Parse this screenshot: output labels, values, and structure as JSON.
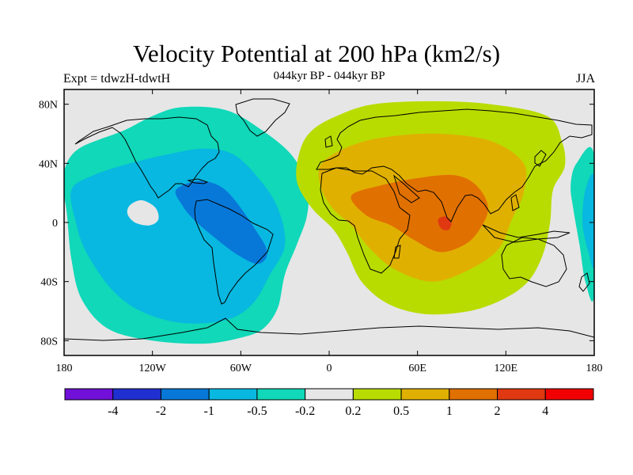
{
  "title": "Velocity Potential at 200 hPa (km2/s)",
  "subtitle": "044kyr BP - 044kyr BP",
  "left_label": "Expt = tdwzH-tdwtH",
  "right_label": "JJA",
  "lat_ticks": [
    {
      "value": 80,
      "label": "80N"
    },
    {
      "value": 40,
      "label": "40N"
    },
    {
      "value": 0,
      "label": "0"
    },
    {
      "value": -40,
      "label": "40S"
    },
    {
      "value": -80,
      "label": "80S"
    }
  ],
  "lon_ticks": [
    {
      "value": -180,
      "label": "180"
    },
    {
      "value": -120,
      "label": "120W"
    },
    {
      "value": -60,
      "label": "60W"
    },
    {
      "value": 0,
      "label": "0"
    },
    {
      "value": 60,
      "label": "60E"
    },
    {
      "value": 120,
      "label": "120E"
    },
    {
      "value": 180,
      "label": "180"
    }
  ],
  "colorbar": {
    "colors": [
      "#7010d8",
      "#2030d0",
      "#0878d8",
      "#08b8e0",
      "#10d8b8",
      "#e6e6e6",
      "#b8dc00",
      "#e0b000",
      "#e07000",
      "#e03810",
      "#f00000"
    ],
    "labels": [
      "-4",
      "-2",
      "-1",
      "-0.5",
      "-0.2",
      "0.2",
      "0.5",
      "1",
      "2",
      "4"
    ]
  },
  "chart_data": {
    "type": "contour-map",
    "projection": "cylindrical-equidistant",
    "variable": "Velocity Potential at 200 hPa",
    "units": "km2/s",
    "season": "JJA",
    "lon_range": [
      -180,
      180
    ],
    "lat_range": [
      -90,
      90
    ],
    "levels": [
      -4,
      -2,
      -1,
      -0.5,
      -0.2,
      0.2,
      0.5,
      1,
      2,
      4
    ],
    "regions": [
      {
        "name": "americas-pacific-negative",
        "level": "-0.2 to -0.5",
        "color": "#10d8b8",
        "polygon": [
          [
            -180,
            35
          ],
          [
            -170,
            50
          ],
          [
            -140,
            62
          ],
          [
            -120,
            72
          ],
          [
            -100,
            78
          ],
          [
            -70,
            76
          ],
          [
            -45,
            62
          ],
          [
            -25,
            45
          ],
          [
            -15,
            25
          ],
          [
            -15,
            5
          ],
          [
            -22,
            -15
          ],
          [
            -30,
            -35
          ],
          [
            -35,
            -58
          ],
          [
            -45,
            -72
          ],
          [
            -60,
            -78
          ],
          [
            -85,
            -82
          ],
          [
            -120,
            -80
          ],
          [
            -150,
            -72
          ],
          [
            -168,
            -52
          ],
          [
            -175,
            -25
          ],
          [
            -178,
            5
          ],
          [
            -180,
            20
          ]
        ]
      },
      {
        "name": "americas-mid-negative",
        "level": "-0.5 to -1",
        "color": "#08b8e0",
        "polygon": [
          [
            -175,
            22
          ],
          [
            -160,
            32
          ],
          [
            -135,
            40
          ],
          [
            -110,
            46
          ],
          [
            -85,
            50
          ],
          [
            -65,
            46
          ],
          [
            -48,
            30
          ],
          [
            -35,
            10
          ],
          [
            -30,
            -15
          ],
          [
            -40,
            -35
          ],
          [
            -52,
            -55
          ],
          [
            -70,
            -66
          ],
          [
            -100,
            -68
          ],
          [
            -128,
            -60
          ],
          [
            -148,
            -45
          ],
          [
            -165,
            -20
          ],
          [
            -172,
            0
          ]
        ]
      },
      {
        "name": "central-america-strong-negative",
        "level": "-1 to -2",
        "color": "#0878d8",
        "polygon": [
          [
            -104,
            22
          ],
          [
            -90,
            28
          ],
          [
            -75,
            25
          ],
          [
            -64,
            15
          ],
          [
            -50,
            -5
          ],
          [
            -42,
            -20
          ],
          [
            -48,
            -28
          ],
          [
            -62,
            -22
          ],
          [
            -78,
            -10
          ],
          [
            -92,
            2
          ],
          [
            -100,
            12
          ]
        ]
      },
      {
        "name": "pacific-weak-patch",
        "level": "-0.2 to 0.2",
        "color": "#e6e6e6",
        "polygon": [
          [
            -135,
            12
          ],
          [
            -127,
            15
          ],
          [
            -118,
            10
          ],
          [
            -116,
            2
          ],
          [
            -122,
            -2
          ],
          [
            -132,
            0
          ],
          [
            -137,
            6
          ]
        ]
      },
      {
        "name": "afro-eurasia-positive",
        "level": "0.2 to 0.5",
        "color": "#b8dc00",
        "polygon": [
          [
            -20,
            48
          ],
          [
            -12,
            62
          ],
          [
            5,
            72
          ],
          [
            30,
            80
          ],
          [
            70,
            82
          ],
          [
            110,
            80
          ],
          [
            148,
            72
          ],
          [
            158,
            55
          ],
          [
            160,
            38
          ],
          [
            152,
            22
          ],
          [
            150,
            0
          ],
          [
            145,
            -22
          ],
          [
            135,
            -40
          ],
          [
            118,
            -52
          ],
          [
            95,
            -60
          ],
          [
            65,
            -62
          ],
          [
            40,
            -55
          ],
          [
            22,
            -40
          ],
          [
            12,
            -20
          ],
          [
            3,
            -5
          ],
          [
            -12,
            10
          ],
          [
            -22,
            28
          ]
        ]
      },
      {
        "name": "north-africa-asia-moderate",
        "level": "0.5 to 1",
        "color": "#e0b000",
        "polygon": [
          [
            -5,
            40
          ],
          [
            15,
            52
          ],
          [
            40,
            58
          ],
          [
            75,
            60
          ],
          [
            110,
            55
          ],
          [
            132,
            40
          ],
          [
            132,
            20
          ],
          [
            124,
            2
          ],
          [
            115,
            -18
          ],
          [
            95,
            -32
          ],
          [
            70,
            -40
          ],
          [
            45,
            -32
          ],
          [
            28,
            -18
          ],
          [
            15,
            -2
          ],
          [
            2,
            10
          ],
          [
            -6,
            25
          ]
        ]
      },
      {
        "name": "indian-ocean-strong",
        "level": "1 to 2",
        "color": "#e07000",
        "polygon": [
          [
            15,
            18
          ],
          [
            35,
            25
          ],
          [
            60,
            30
          ],
          [
            85,
            32
          ],
          [
            100,
            25
          ],
          [
            108,
            10
          ],
          [
            102,
            -5
          ],
          [
            92,
            -15
          ],
          [
            75,
            -20
          ],
          [
            58,
            -12
          ],
          [
            42,
            -2
          ],
          [
            25,
            5
          ]
        ]
      },
      {
        "name": "indian-ocean-peak",
        "level": "2 to 4",
        "color": "#e03810",
        "polygon": [
          [
            74,
            2
          ],
          [
            79,
            4
          ],
          [
            83,
            0
          ],
          [
            81,
            -5
          ],
          [
            76,
            -4
          ]
        ]
      },
      {
        "name": "west-pacific-negative-east",
        "level": "-0.2 to -0.5",
        "color": "#10d8b8",
        "polygon": [
          [
            180,
            45
          ],
          [
            168,
            40
          ],
          [
            164,
            25
          ],
          [
            166,
            8
          ],
          [
            170,
            -15
          ],
          [
            174,
            -40
          ],
          [
            180,
            -48
          ]
        ]
      },
      {
        "name": "west-pacific-mid-negative-east",
        "level": "-0.5 to -1",
        "color": "#08b8e0",
        "polygon": [
          [
            180,
            30
          ],
          [
            174,
            22
          ],
          [
            172,
            0
          ],
          [
            176,
            -20
          ],
          [
            180,
            -28
          ]
        ]
      }
    ]
  }
}
